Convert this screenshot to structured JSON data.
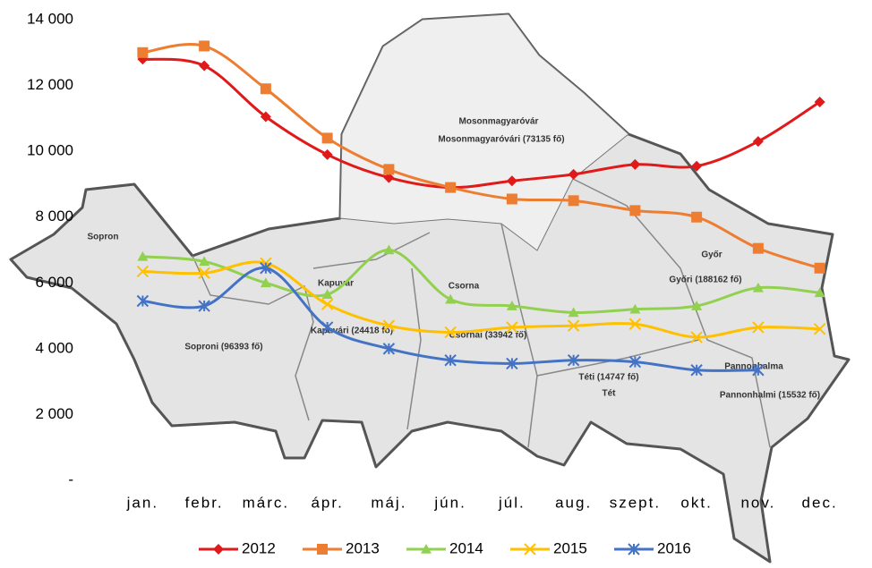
{
  "chart_data": {
    "type": "line",
    "categories": [
      "jan.",
      "febr.",
      "márc.",
      "ápr.",
      "máj.",
      "jún.",
      "júl.",
      "aug.",
      "szept.",
      "okt.",
      "nov.",
      "dec."
    ],
    "series": [
      {
        "name": "2012",
        "color": "#e01a1a",
        "marker": "diamond",
        "values": [
          12800,
          12600,
          11050,
          9900,
          9200,
          8900,
          9100,
          9300,
          9600,
          9550,
          10300,
          11500
        ]
      },
      {
        "name": "2013",
        "color": "#ed7d31",
        "marker": "square",
        "values": [
          13000,
          13200,
          11900,
          10400,
          9450,
          8900,
          8550,
          8500,
          8200,
          8000,
          7050,
          6450
        ]
      },
      {
        "name": "2014",
        "color": "#92d050",
        "marker": "triangle",
        "values": [
          6800,
          6650,
          6000,
          5650,
          7000,
          5500,
          5300,
          5100,
          5200,
          5300,
          5850,
          5700
        ]
      },
      {
        "name": "2015",
        "color": "#ffc000",
        "marker": "x",
        "values": [
          6350,
          6300,
          6600,
          5350,
          4700,
          4500,
          4650,
          4700,
          4750,
          4350,
          4650,
          4600
        ]
      },
      {
        "name": "2016",
        "color": "#4472c4",
        "marker": "star",
        "values": [
          5450,
          5300,
          6450,
          4650,
          4000,
          3650,
          3550,
          3650,
          3600,
          3350,
          3350,
          null
        ]
      }
    ],
    "ylim": [
      0,
      14000
    ],
    "yticks": [
      {
        "value": 0,
        "label": "-"
      },
      {
        "value": 2000,
        "label": "2 000"
      },
      {
        "value": 4000,
        "label": "4 000"
      },
      {
        "value": 6000,
        "label": "6 000"
      },
      {
        "value": 8000,
        "label": "8 000"
      },
      {
        "value": 10000,
        "label": "10 000"
      },
      {
        "value": 12000,
        "label": "12 000"
      },
      {
        "value": 14000,
        "label": "14 000"
      }
    ],
    "grid": false,
    "legend": "bottom",
    "annotations": [
      "Sopron",
      "Soproni (96393 fő)",
      "Kapuvár",
      "Kapuvári (24418 fő)",
      "Csorna",
      "Csornai (33942 fő)",
      "Mosonmagyaróvár",
      "Mosonmagyaróvári (73135 fő)",
      "Győr",
      "Győri (188162 fő)",
      "Téti (14747 fő)",
      "Tét",
      "Pannonhalma",
      "Pannonhalmi (15532 fő)"
    ]
  }
}
